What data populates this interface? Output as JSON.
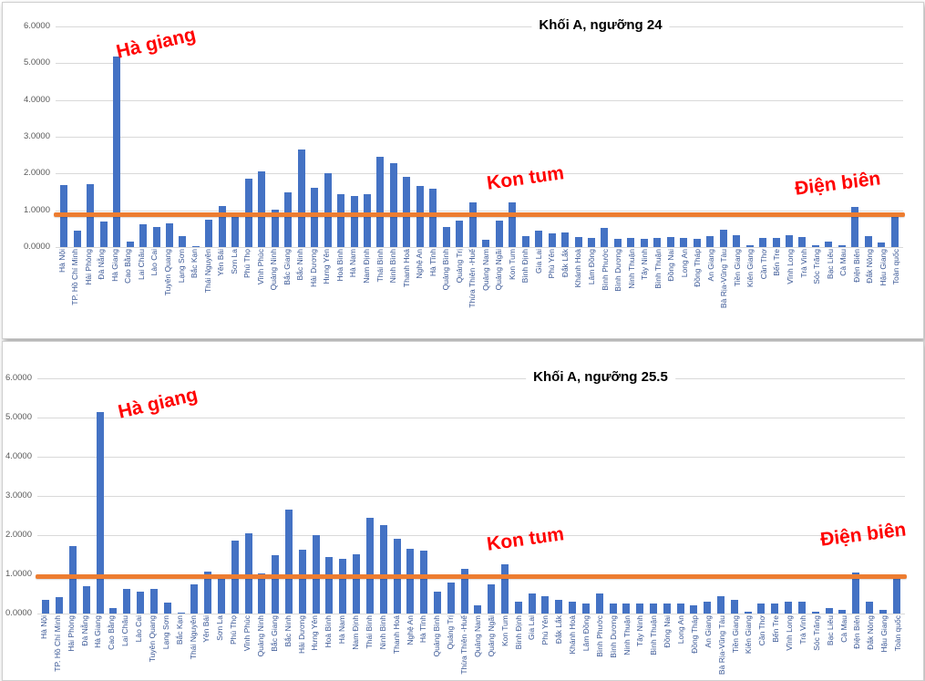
{
  "colors": {
    "bar": "#4472C4",
    "threshold": "#ED7D31",
    "annotation": "#FF0000"
  },
  "chart_data": [
    {
      "type": "bar",
      "title": "Khối A, ngưỡng 24",
      "xlabel": "",
      "ylabel": "",
      "ylim": [
        0,
        6
      ],
      "y_ticks": [
        "6.0000",
        "5.0000",
        "4.0000",
        "3.0000",
        "2.0000",
        "1.0000",
        "0.0000"
      ],
      "grid": true,
      "legend": "none",
      "threshold_line": 0.9,
      "annotations": [
        "Hà giang",
        "Kon tum",
        "Điện biên"
      ],
      "categories": [
        "Hà Nội",
        "TP. Hồ Chí Minh",
        "Hải Phòng",
        "Đà Nẵng",
        "Hà Giang",
        "Cao Bằng",
        "Lai Châu",
        "Lào Cai",
        "Tuyên Quang",
        "Lạng Sơn",
        "Bắc Kạn",
        "Thái Nguyên",
        "Yên Bái",
        "Sơn La",
        "Phú Thọ",
        "Vĩnh Phúc",
        "Quảng Ninh",
        "Bắc Giang",
        "Bắc Ninh",
        "Hải Dương",
        "Hưng Yên",
        "Hoà Bình",
        "Hà Nam",
        "Nam Định",
        "Thái Bình",
        "Ninh Bình",
        "Thanh Hoá",
        "Nghệ An",
        "Hà Tĩnh",
        "Quảng Bình",
        "Quảng Trị",
        "Thừa Thiên -Huế",
        "Quảng Nam",
        "Quảng Ngãi",
        "Kon Tum",
        "Bình Định",
        "Gia Lai",
        "Phú Yên",
        "Đắk Lắk",
        "Khánh Hoà",
        "Lâm Đồng",
        "Bình Phước",
        "Bình Dương",
        "Ninh Thuận",
        "Tây Ninh",
        "Bình Thuận",
        "Đồng Nai",
        "Long An",
        "Đồng Tháp",
        "An Giang",
        "Bà Rịa-Vũng Tàu",
        "Tiền Giang",
        "Kiên Giang",
        "Cần Thơ",
        "Bến Tre",
        "Vĩnh Long",
        "Trà Vinh",
        "Sóc Trăng",
        "Bạc Liêu",
        "Cà Mau",
        "Điện Biên",
        "Đắk Nông",
        "Hậu Giang",
        "Toàn quốc"
      ],
      "values": [
        1.68,
        0.45,
        1.72,
        0.7,
        5.18,
        0.15,
        0.62,
        0.55,
        0.65,
        0.3,
        0.03,
        0.75,
        1.12,
        0.95,
        1.85,
        2.05,
        1.02,
        1.48,
        2.65,
        1.62,
        2.0,
        1.45,
        1.4,
        1.45,
        2.45,
        2.28,
        1.9,
        1.65,
        1.58,
        0.55,
        0.72,
        1.22,
        0.2,
        0.72,
        1.22,
        0.3,
        0.45,
        0.38,
        0.4,
        0.28,
        0.25,
        0.52,
        0.22,
        0.25,
        0.22,
        0.25,
        0.28,
        0.25,
        0.22,
        0.3,
        0.48,
        0.32,
        0.05,
        0.25,
        0.25,
        0.32,
        0.28,
        0.05,
        0.15,
        0.06,
        1.08,
        0.3,
        0.12,
        0.92
      ]
    },
    {
      "type": "bar",
      "title": "Khối A, ngưỡng 25.5",
      "xlabel": "",
      "ylabel": "",
      "ylim": [
        0,
        6
      ],
      "y_ticks": [
        "6.0000",
        "5.0000",
        "4.0000",
        "3.0000",
        "2.0000",
        "1.0000",
        "0.0000"
      ],
      "grid": true,
      "legend": "none",
      "threshold_line": 0.95,
      "annotations": [
        "Hà giang",
        "Kon tum",
        "Điện biên"
      ],
      "categories": [
        "Hà Nội",
        "TP. Hồ Chí Minh",
        "Hải Phòng",
        "Đà Nẵng",
        "Hà Giang",
        "Cao Bằng",
        "Lai Châu",
        "Lào Cai",
        "Tuyên Quang",
        "Lạng Sơn",
        "Bắc Kạn",
        "Thái Nguyên",
        "Yên Bái",
        "Sơn La",
        "Phú Thọ",
        "Vĩnh Phúc",
        "Quảng Ninh",
        "Bắc Giang",
        "Bắc Ninh",
        "Hải Dương",
        "Hưng Yên",
        "Hoà Bình",
        "Hà Nam",
        "Nam Định",
        "Thái Bình",
        "Ninh Bình",
        "Thanh Hoá",
        "Nghệ An",
        "Hà Tĩnh",
        "Quảng Bình",
        "Quảng Trị",
        "Thừa Thiên -Huế",
        "Quảng Nam",
        "Quảng Ngãi",
        "Kon Tum",
        "Bình Định",
        "Gia Lai",
        "Phú Yên",
        "Đắk Lắk",
        "Khánh Hoà",
        "Lâm Đồng",
        "Bình Phước",
        "Bình Dương",
        "Ninh Thuận",
        "Tây Ninh",
        "Bình Thuận",
        "Đồng Nai",
        "Long An",
        "Đồng Tháp",
        "An Giang",
        "Bà Rịa-Vũng Tàu",
        "Tiền Giang",
        "Kiên Giang",
        "Cần Thơ",
        "Bến Tre",
        "Vĩnh Long",
        "Trà Vinh",
        "Sóc Trăng",
        "Bạc Liêu",
        "Cà Mau",
        "Điện Biên",
        "Đắk Nông",
        "Hậu Giang",
        "Toàn quốc"
      ],
      "values": [
        0.35,
        0.42,
        1.72,
        0.7,
        5.15,
        0.15,
        0.62,
        0.55,
        0.62,
        0.28,
        0.03,
        0.75,
        1.08,
        0.95,
        1.85,
        2.05,
        1.02,
        1.48,
        2.65,
        1.62,
        2.0,
        1.45,
        1.4,
        1.52,
        2.45,
        2.25,
        1.9,
        1.65,
        1.6,
        0.55,
        0.8,
        1.15,
        0.2,
        0.75,
        1.25,
        0.3,
        0.5,
        0.45,
        0.35,
        0.3,
        0.25,
        0.5,
        0.25,
        0.25,
        0.25,
        0.25,
        0.25,
        0.25,
        0.2,
        0.3,
        0.45,
        0.35,
        0.05,
        0.25,
        0.25,
        0.3,
        0.3,
        0.05,
        0.15,
        0.1,
        1.05,
        0.3,
        0.1,
        0.9
      ]
    }
  ]
}
